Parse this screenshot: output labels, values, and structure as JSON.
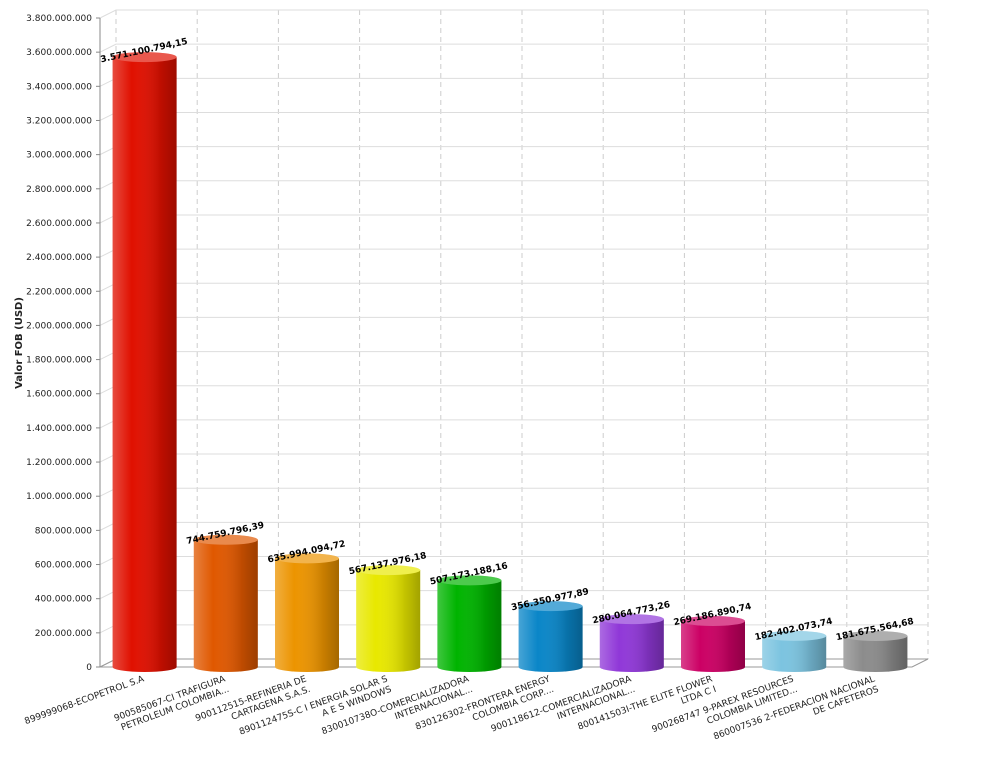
{
  "chart_data": {
    "type": "bar",
    "y_label": "Valor FOB (USD)",
    "categories": [
      [
        "899999068-ECOPETROL S.A"
      ],
      [
        "900585067-CI TRAFIGURA",
        "PETROLEUM COLOMBIA..."
      ],
      [
        "900112515-REFINERIA DE",
        "CARTAGENA S.A.S."
      ],
      [
        "890112475S-C I ENERGIA SOLAR S",
        "A E S WINDOWS"
      ],
      [
        "830010738O-COMERCIALIZADORA",
        "INTERNACIONAL..."
      ],
      [
        "830126302-FRONTERA ENERGY",
        "COLOMBIA CORP...."
      ],
      [
        "900118612-COMERCIALIZADORA",
        "INTERNACIONAL..."
      ],
      [
        "800141503I-THE ELITE FLOWER",
        "LTDA C I"
      ],
      [
        "900268747 9-PAREX RESOURCES",
        "COLOMBIA LIMITED..."
      ],
      [
        "860007536 2-FEDERACION NACIONAL",
        "DE CAFETEROS"
      ]
    ],
    "values": [
      3571100794.15,
      744759796.39,
      635994094.72,
      567137976.18,
      507173188.16,
      356350977.89,
      280064773.26,
      269186890.74,
      182402073.74,
      181675564.68
    ],
    "value_labels": [
      "3.571.100.794,15",
      "744.759.796,39",
      "635.994.094,72",
      "567.137.976,18",
      "507.173.188,16",
      "356.350.977,89",
      "280.064.773,26",
      "269.186.890,74",
      "182.402.073,74",
      "181.675.564,68"
    ],
    "colors": [
      "#e01000",
      "#e05800",
      "#ec9400",
      "#e8e800",
      "#00b400",
      "#0a86c8",
      "#9038d8",
      "#cc0064",
      "#7cc4e0",
      "#8c8c8c"
    ],
    "ylim": [
      0,
      3800000000
    ],
    "yticks": [
      0,
      {
        "value": 200000000,
        "label": "200.000.000"
      },
      {
        "value": 400000000,
        "label": "400.000.000"
      },
      {
        "value": 600000000,
        "label": "600.000.000"
      },
      {
        "value": 800000000,
        "label": "800.000.000"
      },
      {
        "value": 1000000000,
        "label": "1.000.000.000"
      },
      {
        "value": 1200000000,
        "label": "1.200.000.000"
      },
      {
        "value": 1400000000,
        "label": "1.400.000.000"
      },
      {
        "value": 1600000000,
        "label": "1.600.000.000"
      },
      {
        "value": 1800000000,
        "label": "1.800.000.000"
      },
      {
        "value": 2000000000,
        "label": "2.000.000.000"
      },
      {
        "value": 2200000000,
        "label": "2.200.000.000"
      },
      {
        "value": 2400000000,
        "label": "2.400.000.000"
      },
      {
        "value": 2600000000,
        "label": "2.600.000.000"
      },
      {
        "value": 2800000000,
        "label": "2.800.000.000"
      },
      {
        "value": 3000000000,
        "label": "3.000.000.000"
      },
      {
        "value": 3200000000,
        "label": "3.200.000.000"
      },
      {
        "value": 3400000000,
        "label": "3.400.000.000"
      },
      {
        "value": 3600000000,
        "label": "3.600.000.000"
      },
      {
        "value": 3800000000,
        "label": "3.800.000.000"
      }
    ],
    "grid": true
  }
}
